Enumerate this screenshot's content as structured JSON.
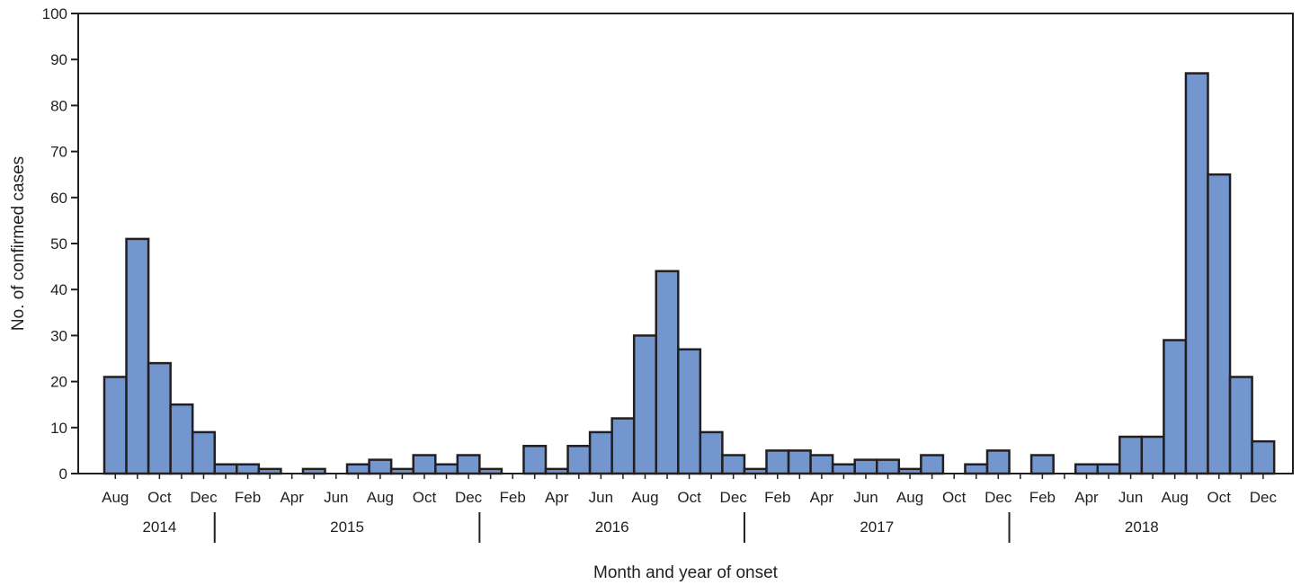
{
  "chart_data": {
    "type": "bar",
    "title": "",
    "xlabel": "Month and year of onset",
    "ylabel": "No. of confirmed cases",
    "ylim": [
      0,
      100
    ],
    "yticks": [
      0,
      10,
      20,
      30,
      40,
      50,
      60,
      70,
      80,
      90,
      100
    ],
    "grid": false,
    "bar_color": "#7396cf",
    "bar_edge_color": "#231f20",
    "categories": [
      "Aug 2014",
      "Sep 2014",
      "Oct 2014",
      "Nov 2014",
      "Dec 2014",
      "Jan 2015",
      "Feb 2015",
      "Mar 2015",
      "Apr 2015",
      "May 2015",
      "Jun 2015",
      "Jul 2015",
      "Aug 2015",
      "Sep 2015",
      "Oct 2015",
      "Nov 2015",
      "Dec 2015",
      "Jan 2016",
      "Feb 2016",
      "Mar 2016",
      "Apr 2016",
      "May 2016",
      "Jun 2016",
      "Jul 2016",
      "Aug 2016",
      "Sep 2016",
      "Oct 2016",
      "Nov 2016",
      "Dec 2016",
      "Jan 2017",
      "Feb 2017",
      "Mar 2017",
      "Apr 2017",
      "May 2017",
      "Jun 2017",
      "Jul 2017",
      "Aug 2017",
      "Sep 2017",
      "Oct 2017",
      "Nov 2017",
      "Dec 2017",
      "Jan 2018",
      "Feb 2018",
      "Mar 2018",
      "Apr 2018",
      "May 2018",
      "Jun 2018",
      "Jul 2018",
      "Aug 2018",
      "Sep 2018",
      "Oct 2018",
      "Nov 2018",
      "Dec 2018"
    ],
    "values": [
      21,
      51,
      24,
      15,
      9,
      2,
      2,
      1,
      0,
      1,
      0,
      2,
      3,
      1,
      4,
      2,
      4,
      1,
      0,
      6,
      1,
      6,
      9,
      12,
      30,
      44,
      27,
      9,
      4,
      1,
      5,
      5,
      4,
      2,
      3,
      3,
      1,
      4,
      0,
      2,
      5,
      0,
      4,
      0,
      2,
      2,
      8,
      8,
      29,
      87,
      65,
      21,
      7
    ],
    "month_tick_labels": [
      {
        "month": "Aug 2014",
        "label": "Aug"
      },
      {
        "month": "Oct 2014",
        "label": "Oct"
      },
      {
        "month": "Dec 2014",
        "label": "Dec"
      },
      {
        "month": "Feb 2015",
        "label": "Feb"
      },
      {
        "month": "Apr 2015",
        "label": "Apr"
      },
      {
        "month": "Jun 2015",
        "label": "Jun"
      },
      {
        "month": "Aug 2015",
        "label": "Aug"
      },
      {
        "month": "Oct 2015",
        "label": "Oct"
      },
      {
        "month": "Dec 2015",
        "label": "Dec"
      },
      {
        "month": "Feb 2016",
        "label": "Feb"
      },
      {
        "month": "Apr 2016",
        "label": "Apr"
      },
      {
        "month": "Jun 2016",
        "label": "Jun"
      },
      {
        "month": "Aug 2016",
        "label": "Aug"
      },
      {
        "month": "Oct 2016",
        "label": "Oct"
      },
      {
        "month": "Dec 2016",
        "label": "Dec"
      },
      {
        "month": "Feb 2017",
        "label": "Feb"
      },
      {
        "month": "Apr 2017",
        "label": "Apr"
      },
      {
        "month": "Jun 2017",
        "label": "Jun"
      },
      {
        "month": "Aug 2017",
        "label": "Aug"
      },
      {
        "month": "Oct 2017",
        "label": "Oct"
      },
      {
        "month": "Dec 2017",
        "label": "Dec"
      },
      {
        "month": "Feb 2018",
        "label": "Feb"
      },
      {
        "month": "Apr 2018",
        "label": "Apr"
      },
      {
        "month": "Jun 2018",
        "label": "Jun"
      },
      {
        "month": "Aug 2018",
        "label": "Aug"
      },
      {
        "month": "Oct 2018",
        "label": "Oct"
      },
      {
        "month": "Dec 2018",
        "label": "Dec"
      }
    ],
    "year_labels": [
      {
        "year": "2014",
        "first_month": "Aug 2014",
        "last_month": "Dec 2014"
      },
      {
        "year": "2015",
        "first_month": "Jan 2015",
        "last_month": "Dec 2015"
      },
      {
        "year": "2016",
        "first_month": "Jan 2016",
        "last_month": "Dec 2016"
      },
      {
        "year": "2017",
        "first_month": "Jan 2017",
        "last_month": "Dec 2017"
      },
      {
        "year": "2018",
        "first_month": "Jan 2018",
        "last_month": "Dec 2018"
      }
    ]
  }
}
